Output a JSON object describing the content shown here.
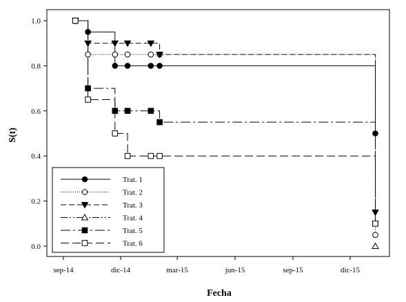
{
  "chart_data": {
    "type": "line",
    "subtype": "step",
    "xlabel": "Fecha",
    "ylabel": "S(t)",
    "x_ticks": [
      "sep-14",
      "dic-14",
      "mar-15",
      "jun-15",
      "sep-15",
      "dic-15"
    ],
    "y_ticks": [
      "0.0",
      "0.2",
      "0.4",
      "0.6",
      "0.8",
      "1.0"
    ],
    "ylim": [
      -0.05,
      1.05
    ],
    "legend_position": "bottom-left",
    "grid": false,
    "series": [
      {
        "name": "Trat. 1",
        "dash": "solid",
        "marker": "circle-filled",
        "points": [
          [
            "2014-09-20",
            1.0
          ],
          [
            "2014-10-10",
            0.95
          ],
          [
            "2014-11-22",
            0.8
          ],
          [
            "2014-12-12",
            0.8
          ],
          [
            "2015-01-18",
            0.8
          ],
          [
            "2015-02-01",
            0.8
          ],
          [
            "2016-01-10",
            0.5
          ]
        ]
      },
      {
        "name": "Trat. 2",
        "dash": "dotted",
        "marker": "circle-open",
        "points": [
          [
            "2014-09-20",
            1.0
          ],
          [
            "2014-10-10",
            0.85
          ],
          [
            "2014-11-22",
            0.85
          ],
          [
            "2014-12-12",
            0.85
          ],
          [
            "2015-01-18",
            0.85
          ],
          [
            "2015-02-01",
            0.85
          ],
          [
            "2016-01-10",
            0.05
          ]
        ]
      },
      {
        "name": "Trat. 3",
        "dash": "dashed",
        "marker": "triangle-down-filled",
        "points": [
          [
            "2014-09-20",
            1.0
          ],
          [
            "2014-10-10",
            0.9
          ],
          [
            "2014-11-22",
            0.9
          ],
          [
            "2014-12-12",
            0.9
          ],
          [
            "2015-01-18",
            0.9
          ],
          [
            "2015-02-01",
            0.85
          ],
          [
            "2016-01-10",
            0.15
          ]
        ]
      },
      {
        "name": "Trat. 4",
        "dash": "dash-dot-dot",
        "marker": "triangle-up-open",
        "points": [
          [
            "2016-01-10",
            0.0
          ]
        ]
      },
      {
        "name": "Trat. 5",
        "dash": "long-dash-dot",
        "marker": "square-filled",
        "points": [
          [
            "2014-09-20",
            1.0
          ],
          [
            "2014-10-10",
            0.7
          ],
          [
            "2014-11-22",
            0.6
          ],
          [
            "2014-12-12",
            0.6
          ],
          [
            "2015-01-18",
            0.6
          ],
          [
            "2015-02-01",
            0.55
          ],
          [
            "2016-01-10",
            0.1
          ]
        ]
      },
      {
        "name": "Trat. 6",
        "dash": "long-dash",
        "marker": "square-open",
        "points": [
          [
            "2014-09-20",
            1.0
          ],
          [
            "2014-10-10",
            0.65
          ],
          [
            "2014-11-22",
            0.5
          ],
          [
            "2014-12-12",
            0.4
          ],
          [
            "2015-01-18",
            0.4
          ],
          [
            "2015-02-01",
            0.4
          ],
          [
            "2016-01-10",
            0.1
          ]
        ]
      }
    ]
  }
}
